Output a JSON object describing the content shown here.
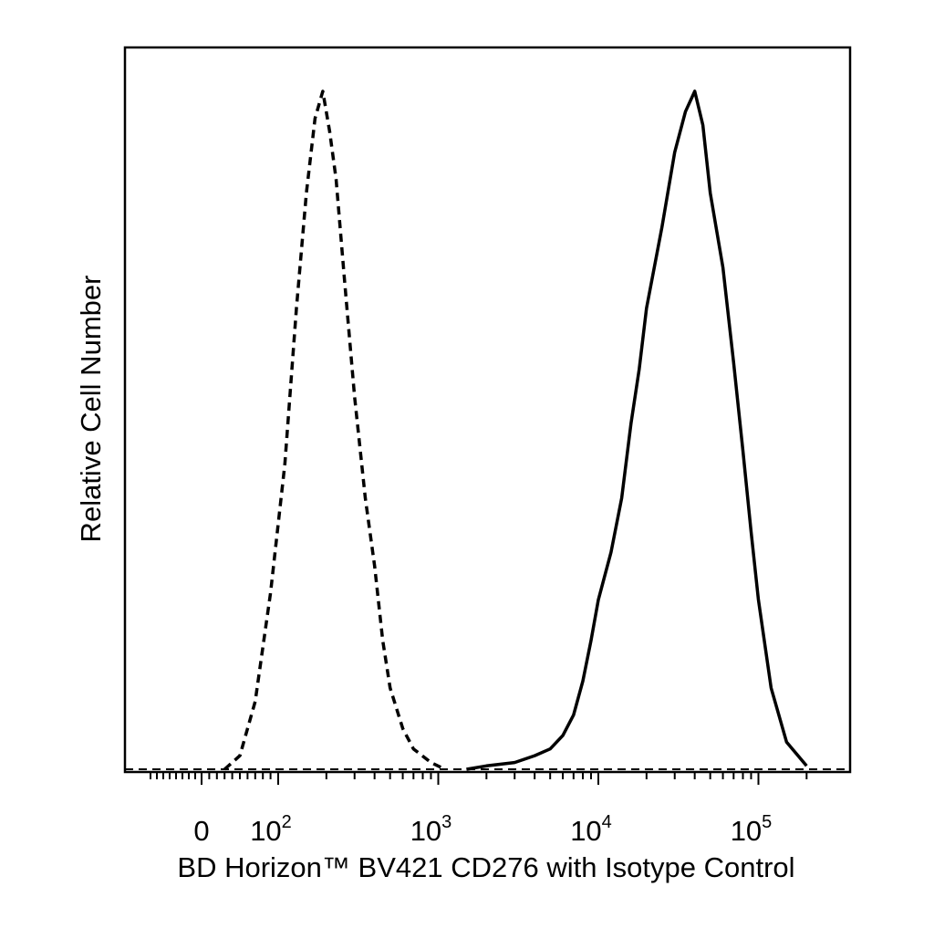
{
  "chart_data": {
    "type": "line",
    "title": "",
    "xlabel": "BD Horizon™ BV421 CD276 with Isotype Control",
    "ylabel": "Relative Cell Number",
    "x_scale": "biexponential",
    "xlim": [
      -400,
      250000
    ],
    "ylim": [
      0,
      100
    ],
    "grid": false,
    "legend": "none",
    "x_tick_labels": [
      {
        "value": 0,
        "base": "0",
        "exp": ""
      },
      {
        "value": 100,
        "base": "10",
        "exp": "2"
      },
      {
        "value": 1000,
        "base": "10",
        "exp": "3"
      },
      {
        "value": 10000,
        "base": "10",
        "exp": "4"
      },
      {
        "value": 100000,
        "base": "10",
        "exp": "5"
      }
    ],
    "series": [
      {
        "style": "dashed",
        "color": "#000000",
        "x": [
          30,
          50,
          70,
          90,
          110,
          130,
          150,
          170,
          190,
          210,
          230,
          260,
          300,
          350,
          400,
          450,
          500,
          600,
          700,
          900,
          1100
        ],
        "y": [
          0,
          2,
          10,
          26,
          45,
          68,
          85,
          96,
          100,
          94,
          87,
          72,
          55,
          40,
          30,
          19,
          12,
          6,
          3,
          1,
          0
        ]
      },
      {
        "style": "solid",
        "color": "#000000",
        "x": [
          1500,
          2000,
          3000,
          4000,
          5000,
          6000,
          7000,
          8000,
          9000,
          10000,
          12000,
          14000,
          16000,
          18000,
          20000,
          25000,
          30000,
          35000,
          40000,
          45000,
          50000,
          60000,
          70000,
          80000,
          90000,
          100000,
          120000,
          150000,
          200000
        ],
        "y": [
          0,
          0.5,
          1,
          2,
          3,
          5,
          8,
          13,
          19,
          25,
          32,
          40,
          51,
          59,
          68,
          80,
          91,
          97,
          100,
          95,
          85,
          74,
          60,
          47,
          35,
          25,
          12,
          4,
          0.5
        ]
      }
    ]
  }
}
